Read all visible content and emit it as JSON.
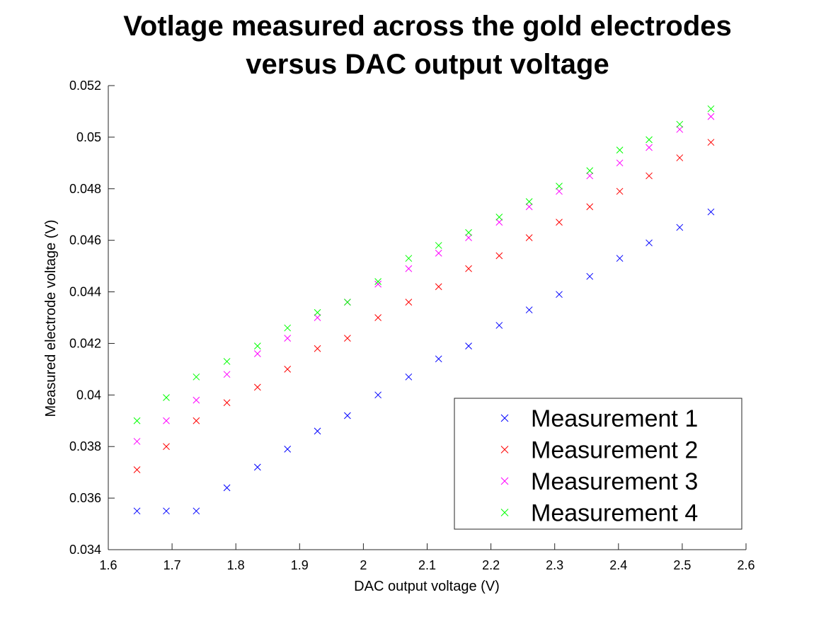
{
  "chart_data": {
    "type": "scatter",
    "title_lines": [
      "Votlage measured across the gold electrodes",
      "versus DAC output voltage"
    ],
    "xlabel": "DAC output voltage (V)",
    "ylabel": "Measured electrode voltage (V)",
    "xlim": [
      1.6,
      2.6
    ],
    "ylim": [
      0.034,
      0.052
    ],
    "x_ticks": [
      1.6,
      1.7,
      1.8,
      1.9,
      2.0,
      2.1,
      2.2,
      2.3,
      2.4,
      2.5,
      2.6
    ],
    "x_tick_labels": [
      "1.6",
      "1.7",
      "1.8",
      "1.9",
      "2",
      "2.1",
      "2.2",
      "2.3",
      "2.4",
      "2.5",
      "2.6"
    ],
    "y_ticks": [
      0.034,
      0.036,
      0.038,
      0.04,
      0.042,
      0.044,
      0.046,
      0.048,
      0.05,
      0.052
    ],
    "y_tick_labels": [
      "0.034",
      "0.036",
      "0.038",
      "0.04",
      "0.042",
      "0.044",
      "0.046",
      "0.048",
      "0.05",
      "0.052"
    ],
    "grid": false,
    "legend_position": "bottom-right",
    "x": [
      1.645,
      1.691,
      1.738,
      1.786,
      1.834,
      1.881,
      1.928,
      1.975,
      2.023,
      2.071,
      2.118,
      2.165,
      2.213,
      2.26,
      2.307,
      2.355,
      2.402,
      2.448,
      2.496,
      2.545
    ],
    "series": [
      {
        "name": "Measurement 1",
        "color": "#0000ff",
        "marker": "x",
        "values": [
          0.0355,
          0.0355,
          0.0355,
          0.0364,
          0.0372,
          0.0379,
          0.0386,
          0.0392,
          0.04,
          0.0407,
          0.0414,
          0.0419,
          0.0427,
          0.0433,
          0.0439,
          0.0446,
          0.0453,
          0.0459,
          0.0465,
          0.0471
        ]
      },
      {
        "name": "Measurement 2",
        "color": "#ff0000",
        "marker": "x",
        "values": [
          0.0371,
          0.038,
          0.039,
          0.0397,
          0.0403,
          0.041,
          0.0418,
          0.0422,
          0.043,
          0.0436,
          0.0442,
          0.0449,
          0.0454,
          0.0461,
          0.0467,
          0.0473,
          0.0479,
          0.0485,
          0.0492,
          0.0498
        ]
      },
      {
        "name": "Measurement 3",
        "color": "#ff00ff",
        "marker": "x",
        "values": [
          0.0382,
          0.039,
          0.0398,
          0.0408,
          0.0416,
          0.0422,
          0.043,
          0.0436,
          0.0443,
          0.0449,
          0.0455,
          0.0461,
          0.0467,
          0.0473,
          0.0479,
          0.0485,
          0.049,
          0.0496,
          0.0503,
          0.0508
        ]
      },
      {
        "name": "Measurement 4",
        "color": "#00ff00",
        "marker": "x",
        "values": [
          0.039,
          0.0399,
          0.0407,
          0.0413,
          0.0419,
          0.0426,
          0.0432,
          0.0436,
          0.0444,
          0.0453,
          0.0458,
          0.0463,
          0.0469,
          0.0475,
          0.0481,
          0.0487,
          0.0495,
          0.0499,
          0.0505,
          0.0511
        ]
      }
    ]
  }
}
